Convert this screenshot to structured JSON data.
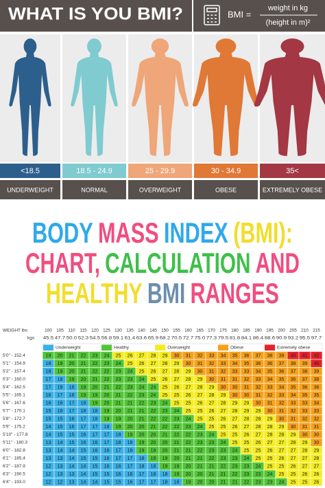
{
  "header": {
    "title": "WHAT IS YOU BMI?",
    "formula": {
      "lhs": "BMI =",
      "numerator": "weight in kg",
      "denominator": "(height in m)²"
    }
  },
  "categories": [
    {
      "range": "<18.5",
      "label": "UNDERWEIGHT",
      "color": "#2d5f8c"
    },
    {
      "range": "18.5 - 24.9",
      "label": "NORMAL",
      "color": "#7fcbd0"
    },
    {
      "range": "25 - 29.9",
      "label": "OVERWEIGHT",
      "color": "#efa679"
    },
    {
      "range": "30 - 34.9",
      "label": "OBESE",
      "color": "#e07836"
    },
    {
      "range": "35<",
      "label": "EXTREMELY OBESE",
      "color": "#a33744"
    }
  ],
  "headline": [
    [
      {
        "text": "BODY",
        "color": "#2fa9ea"
      },
      {
        "text": "MASS",
        "color": "#f04e7e"
      },
      {
        "text": "INDEX",
        "color": "#2fa9ea"
      },
      {
        "text": "(BMI):",
        "color": "#f2dd2a"
      }
    ],
    [
      {
        "text": "CHART,",
        "color": "#f04e7e"
      },
      {
        "text": "CALCULATION",
        "color": "#3fbf4a"
      },
      {
        "text": "AND",
        "color": "#f04e7e"
      }
    ],
    [
      {
        "text": "HEALTHY",
        "color": "#f2dd2a"
      },
      {
        "text": "BMI",
        "color": "#6b8fae"
      },
      {
        "text": "RANGES",
        "color": "#f04e7e"
      }
    ]
  ],
  "table": {
    "weight_label": "WEIGHT lbs",
    "kg_label": "kgs",
    "lbs": [
      100,
      105,
      110,
      115,
      120,
      125,
      130,
      135,
      140,
      145,
      150,
      155,
      160,
      165,
      170,
      175,
      180,
      185,
      190,
      195,
      200,
      205,
      210,
      215
    ],
    "kgs": [
      "45.5",
      "47.7",
      "50.0",
      "52.3",
      "54.5",
      "56.8",
      "59.1",
      "61.4",
      "63.6",
      "65.9",
      "68.2",
      "70.5",
      "72.7",
      "75.0",
      "77.3",
      "79.5",
      "81.8",
      "84.1",
      "86.4",
      "88.6",
      "90.9",
      "93.2",
      "95.5",
      "97.7"
    ],
    "legend": [
      {
        "label": "Underweight",
        "color": "#3ab0e6"
      },
      {
        "label": "Healthy",
        "color": "#52c637"
      },
      {
        "label": "Overweight",
        "color": "#f4ec1f"
      },
      {
        "label": "Obese",
        "color": "#f5a11c"
      },
      {
        "label": "Extremely obese",
        "color": "#e5212b"
      }
    ],
    "rows": [
      {
        "height": "5'0\" - 152.4",
        "values": [
          19,
          20,
          21,
          22,
          23,
          24,
          25,
          26,
          27,
          28,
          29,
          30,
          31,
          32,
          33,
          34,
          35,
          36,
          37,
          38,
          39,
          40,
          41,
          42
        ]
      },
      {
        "height": "5'1\" - 154.9",
        "values": [
          18,
          19,
          20,
          21,
          22,
          23,
          24,
          25,
          26,
          27,
          28,
          29,
          30,
          31,
          32,
          33,
          34,
          35,
          36,
          36,
          37,
          38,
          39,
          40
        ]
      },
      {
        "height": "5'2\" - 157.4",
        "values": [
          18,
          19,
          20,
          21,
          22,
          22,
          23,
          24,
          25,
          26,
          27,
          28,
          29,
          30,
          31,
          32,
          33,
          33,
          34,
          35,
          36,
          37,
          38,
          39
        ]
      },
      {
        "height": "5'3\" - 160.0",
        "values": [
          17,
          18,
          19,
          20,
          21,
          22,
          23,
          23,
          24,
          25,
          26,
          27,
          28,
          29,
          30,
          31,
          31,
          32,
          33,
          34,
          35,
          36,
          37,
          38
        ]
      },
      {
        "height": "5'4\" - 162.5",
        "values": [
          17,
          18,
          18,
          19,
          20,
          21,
          22,
          23,
          24,
          24,
          25,
          26,
          27,
          28,
          29,
          30,
          30,
          31,
          32,
          33,
          34,
          35,
          36,
          36
        ]
      },
      {
        "height": "5'5\" - 165.1",
        "values": [
          16,
          17,
          18,
          19,
          19,
          20,
          21,
          22,
          23,
          24,
          25,
          25,
          26,
          27,
          28,
          29,
          30,
          30,
          31,
          32,
          33,
          34,
          35,
          35
        ]
      },
      {
        "height": "5'6\" - 167.6",
        "values": [
          16,
          16,
          17,
          18,
          19,
          20,
          21,
          21,
          22,
          23,
          24,
          25,
          25,
          26,
          27,
          28,
          29,
          29,
          30,
          31,
          32,
          33,
          33,
          34
        ]
      },
      {
        "height": "5'7\" - 170.1",
        "values": [
          15,
          16,
          17,
          18,
          18,
          19,
          20,
          21,
          21,
          22,
          23,
          24,
          25,
          25,
          26,
          27,
          28,
          29,
          29,
          30,
          31,
          32,
          33,
          33
        ]
      },
      {
        "height": "5'8\" - 172.7",
        "values": [
          15,
          15,
          16,
          17,
          18,
          19,
          19,
          20,
          21,
          22,
          22,
          23,
          24,
          25,
          25,
          26,
          27,
          28,
          28,
          29,
          30,
          31,
          32,
          32
        ]
      },
      {
        "height": "5'9\" - 175.2",
        "values": [
          14,
          15,
          16,
          17,
          17,
          18,
          19,
          20,
          20,
          21,
          22,
          22,
          23,
          24,
          25,
          25,
          26,
          27,
          28,
          28,
          29,
          30,
          31,
          31
        ]
      },
      {
        "height": "5'10\" - 177.8",
        "values": [
          14,
          15,
          15,
          16,
          17,
          17,
          18,
          19,
          20,
          20,
          21,
          22,
          22,
          23,
          24,
          25,
          25,
          26,
          27,
          28,
          28,
          29,
          30,
          30
        ]
      },
      {
        "height": "5'11\" - 180.3",
        "values": [
          13,
          14,
          15,
          16,
          16,
          17,
          18,
          18,
          19,
          20,
          20,
          21,
          22,
          23,
          23,
          24,
          25,
          25,
          26,
          27,
          27,
          28,
          29,
          30
        ]
      },
      {
        "height": "6'0\" - 182.8",
        "values": [
          13,
          14,
          14,
          15,
          16,
          16,
          17,
          18,
          19,
          19,
          20,
          21,
          21,
          22,
          23,
          23,
          24,
          25,
          25,
          26,
          27,
          27,
          28,
          29
        ]
      },
      {
        "height": "6'1\" - 185.4",
        "values": [
          13,
          13,
          14,
          15,
          15,
          16,
          17,
          17,
          18,
          19,
          19,
          20,
          21,
          21,
          22,
          23,
          23,
          24,
          25,
          25,
          26,
          27,
          27,
          28
        ]
      },
      {
        "height": "6'2\" - 187.9",
        "values": [
          12,
          13,
          14,
          14,
          15,
          16,
          16,
          17,
          18,
          18,
          19,
          19,
          20,
          21,
          21,
          22,
          23,
          23,
          24,
          25,
          25,
          26,
          27,
          27
        ]
      },
      {
        "height": "6'3\" - 190.5",
        "values": [
          12,
          13,
          13,
          14,
          15,
          15,
          16,
          16,
          17,
          18,
          18,
          19,
          20,
          20,
          21,
          21,
          22,
          23,
          23,
          24,
          25,
          25,
          26,
          26
        ]
      },
      {
        "height": "6'4\" - 193.0",
        "values": [
          12,
          12,
          13,
          14,
          14,
          15,
          15,
          16,
          17,
          17,
          18,
          18,
          19,
          20,
          20,
          21,
          21,
          22,
          23,
          23,
          24,
          25,
          25,
          26
        ]
      }
    ]
  }
}
